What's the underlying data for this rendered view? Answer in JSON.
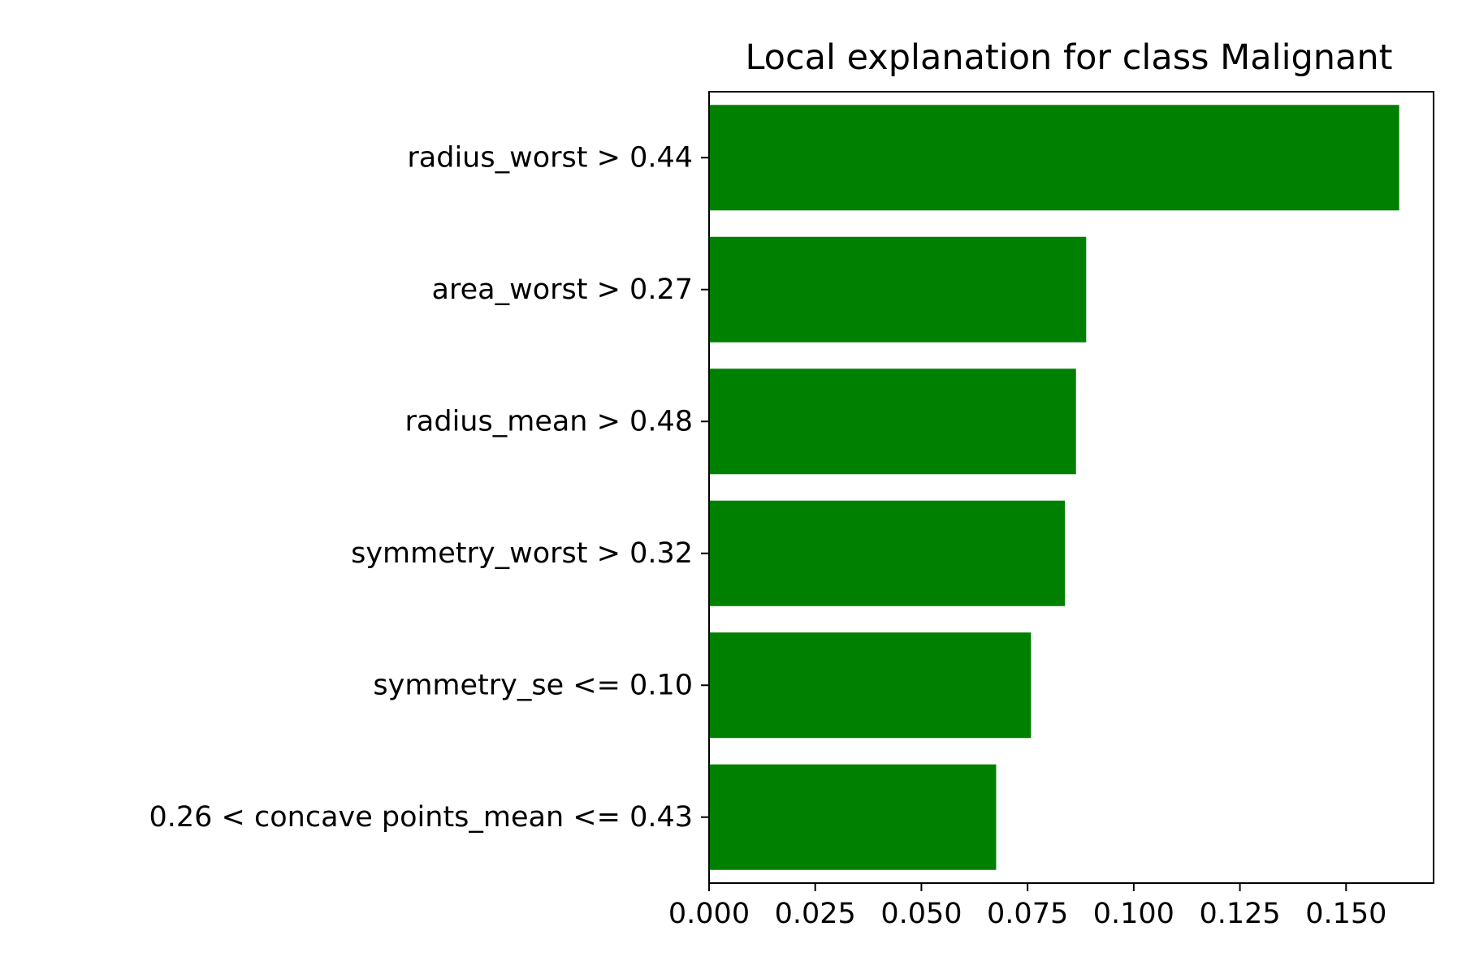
{
  "chart_data": {
    "type": "bar",
    "orientation": "horizontal",
    "title": "Local explanation for class Malignant",
    "xlabel": "",
    "ylabel": "",
    "categories": [
      "radius_worst > 0.44",
      "area_worst > 0.27",
      "radius_mean > 0.48",
      "symmetry_worst > 0.32",
      "symmetry_se <= 0.10",
      "0.26 < concave points_mean <= 0.43"
    ],
    "values": [
      0.1625,
      0.0888,
      0.0864,
      0.0838,
      0.0758,
      0.0676
    ],
    "xlim": [
      0,
      0.1706
    ],
    "xticks": [
      0.0,
      0.025,
      0.05,
      0.075,
      0.1,
      0.125,
      0.15
    ],
    "xtick_labels": [
      "0.000",
      "0.025",
      "0.050",
      "0.075",
      "0.100",
      "0.125",
      "0.150"
    ],
    "grid": false,
    "legend": false,
    "colors": {
      "bar": "#008000",
      "axis": "#000000",
      "background": "#ffffff"
    }
  }
}
